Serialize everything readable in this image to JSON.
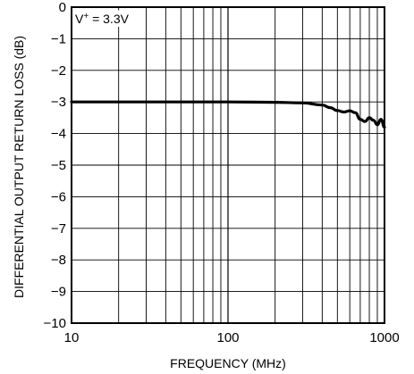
{
  "chart_data": {
    "type": "line",
    "xlabel": "FREQUENCY (MHz)",
    "ylabel": "DIFFERENTIAL OUTPUT RETURN LOSS (dB)",
    "xscale": "log",
    "xlim": [
      10,
      1000
    ],
    "ylim": [
      -10,
      0
    ],
    "grid": true,
    "x_tick_labels": [
      "10",
      "100",
      "1000"
    ],
    "y_tick_labels": [
      "0",
      "−1",
      "−2",
      "−3",
      "−4",
      "−5",
      "−6",
      "−7",
      "−8",
      "−9",
      "−10"
    ],
    "annotation": {
      "prefix": "V",
      "superscript": "+",
      "suffix": " = 3.3V"
    },
    "series": [
      {
        "x": [
          10,
          20,
          50,
          100,
          200,
          300,
          400,
          450,
          500,
          550,
          600,
          650,
          700,
          750,
          800,
          850,
          900,
          950,
          1000
        ],
        "y": [
          -3.0,
          -3.0,
          -3.0,
          -3.0,
          -3.01,
          -3.03,
          -3.1,
          -3.18,
          -3.27,
          -3.32,
          -3.28,
          -3.34,
          -3.55,
          -3.62,
          -3.5,
          -3.58,
          -3.72,
          -3.55,
          -3.8
        ]
      }
    ]
  }
}
